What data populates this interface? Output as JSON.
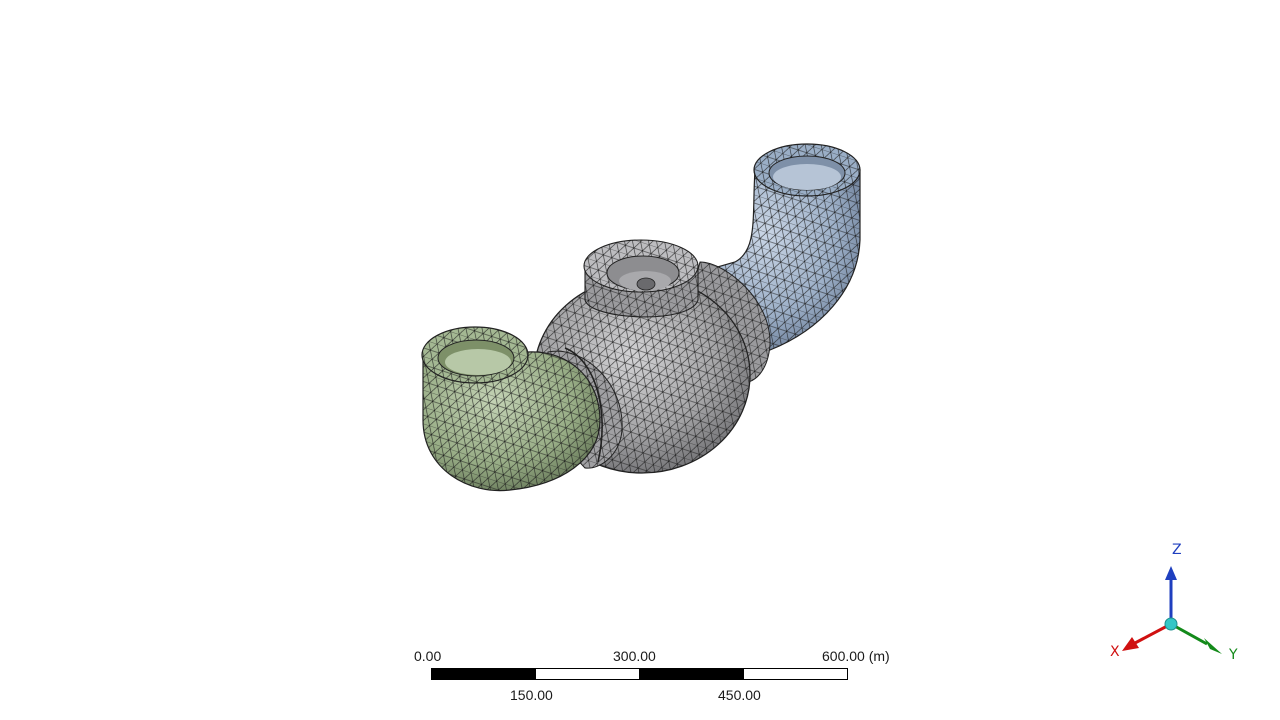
{
  "scale_bar": {
    "top_labels": [
      "0.00",
      "300.00",
      "600.00 (m)"
    ],
    "bottom_labels": [
      "150.00",
      "450.00"
    ]
  },
  "triad": {
    "z_label": "Z",
    "x_label": "X",
    "y_label": "Y",
    "colors": {
      "z": "#1f3fbf",
      "x": "#d01010",
      "y": "#138a1a",
      "origin": "#33c6c6"
    }
  },
  "model": {
    "name_icon": "meshed-pipe-valve-body",
    "colors": {
      "left_elbow": "#9fb48e",
      "body": "#a8a8aa",
      "right_elbow": "#a3b4cb",
      "mesh_lines": "#1a1a1a"
    }
  }
}
